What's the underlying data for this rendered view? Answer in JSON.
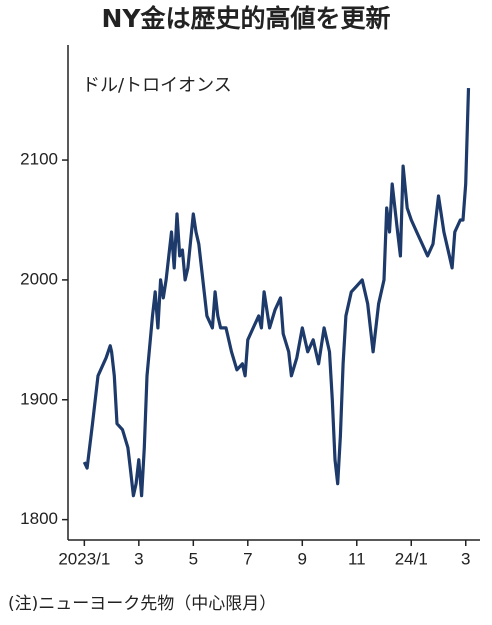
{
  "chart_data": {
    "type": "line",
    "title": "NY金は歴史的高値を更新",
    "y_label": "ドル/トロイオンス",
    "note": "(注)ニューヨーク先物（中心限月）",
    "x": [
      0,
      0.1,
      0.3,
      0.5,
      0.8,
      0.95,
      1.0,
      1.1,
      1.2,
      1.4,
      1.6,
      1.7,
      1.8,
      1.9,
      2.0,
      2.1,
      2.2,
      2.3,
      2.5,
      2.6,
      2.7,
      2.8,
      2.9,
      3.0,
      3.1,
      3.2,
      3.3,
      3.4,
      3.5,
      3.6,
      3.7,
      3.8,
      4.0,
      4.1,
      4.2,
      4.3,
      4.4,
      4.5,
      4.7,
      4.8,
      4.9,
      5.0,
      5.2,
      5.4,
      5.6,
      5.8,
      5.9,
      6.0,
      6.2,
      6.4,
      6.5,
      6.6,
      6.8,
      7.0,
      7.2,
      7.3,
      7.5,
      7.6,
      7.8,
      8.0,
      8.2,
      8.4,
      8.6,
      8.8,
      9.0,
      9.1,
      9.2,
      9.3,
      9.4,
      9.5,
      9.6,
      9.8,
      10.0,
      10.2,
      10.4,
      10.5,
      10.6,
      10.8,
      11.0,
      11.1,
      11.2,
      11.3,
      11.5,
      11.6,
      11.7,
      11.85,
      12.0,
      12.2,
      12.4,
      12.6,
      12.8,
      13.0,
      13.2,
      13.4,
      13.5,
      13.6,
      13.8,
      13.9,
      14.0,
      14.1
    ],
    "series": [
      {
        "name": "NY金",
        "color": "#1d3a6a",
        "values": [
          1848,
          1843,
          1880,
          1920,
          1935,
          1945,
          1940,
          1920,
          1880,
          1875,
          1860,
          1840,
          1820,
          1830,
          1850,
          1820,
          1860,
          1920,
          1970,
          1990,
          1960,
          2000,
          1985,
          2000,
          2020,
          2040,
          2010,
          2055,
          2020,
          2025,
          2000,
          2010,
          2055,
          2040,
          2030,
          2010,
          1990,
          1970,
          1960,
          1990,
          1970,
          1960,
          1960,
          1940,
          1925,
          1930,
          1920,
          1950,
          1960,
          1970,
          1960,
          1990,
          1960,
          1975,
          1985,
          1955,
          1940,
          1920,
          1935,
          1960,
          1940,
          1950,
          1930,
          1960,
          1940,
          1900,
          1850,
          1830,
          1870,
          1930,
          1970,
          1990,
          1995,
          2000,
          1980,
          1960,
          1940,
          1980,
          2000,
          2060,
          2040,
          2080,
          2040,
          2020,
          2095,
          2060,
          2050,
          2040,
          2030,
          2020,
          2030,
          2070,
          2040,
          2020,
          2010,
          2040,
          2050,
          2050,
          2080,
          2160
        ]
      }
    ],
    "xlim": [
      -0.6,
      14.45
    ],
    "ylim": [
      1783,
      2196
    ],
    "xticks": [
      {
        "value": 0,
        "label": "2023/1"
      },
      {
        "value": 2,
        "label": "3"
      },
      {
        "value": 4,
        "label": "5"
      },
      {
        "value": 6,
        "label": "7"
      },
      {
        "value": 8,
        "label": "9"
      },
      {
        "value": 10,
        "label": "11"
      },
      {
        "value": 12,
        "label": "24/1"
      },
      {
        "value": 14,
        "label": "3"
      }
    ],
    "yticks": [
      1800,
      1900,
      2000,
      2100
    ]
  }
}
